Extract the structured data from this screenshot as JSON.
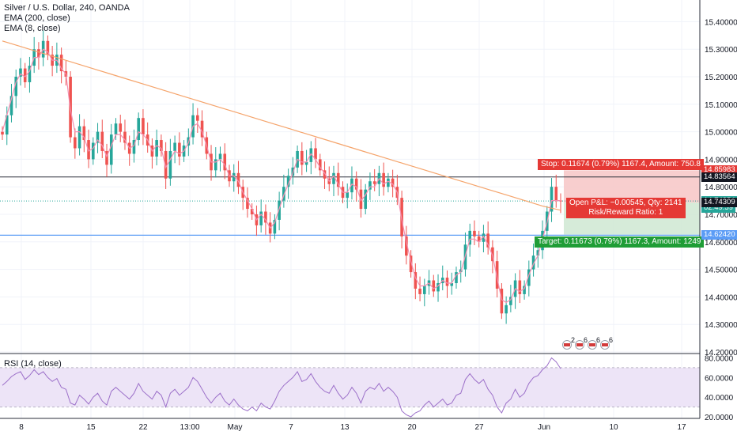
{
  "header": {
    "symbol_line": "Silver / U.S. Dollar, 240, OANDA",
    "ema200_label": "EMA (200, close)",
    "ema8_label": "EMA (8, close)"
  },
  "colors": {
    "up": "#26a69a",
    "down": "#ef5350",
    "ema200": "#f5a46b",
    "ema8": "#f48fb1",
    "stop_zone": "#f7c5c5",
    "target_zone": "#cfe8d2",
    "rsi_line": "#9c70c9",
    "rsi_band": "#ede4f7",
    "stop_tag": "#e53935",
    "target_tag": "#1f9d36",
    "resistance_line": "#2a2e39",
    "support_line": "#5b9cf6"
  },
  "price_axis": {
    "ticks": [
      "15.40000",
      "15.30000",
      "15.20000",
      "15.10000",
      "15.00000",
      "14.90000",
      "14.80000",
      "14.70000",
      "14.60000",
      "14.50000",
      "14.40000",
      "14.30000",
      "14.20000"
    ],
    "tick_values": [
      15.4,
      15.3,
      15.2,
      15.1,
      15.0,
      14.9,
      14.8,
      14.7,
      14.6,
      14.5,
      14.4,
      14.3,
      14.2
    ],
    "range": [
      14.2,
      15.45
    ]
  },
  "price_tags": [
    {
      "label": "14.85983",
      "value": 14.85983,
      "color": "#e53935"
    },
    {
      "label": "14.83564",
      "value": 14.83564,
      "color": "#131722"
    },
    {
      "label": "14.74854",
      "value": 14.74854,
      "color": "#26a69a"
    },
    {
      "label": "02:49:59",
      "value": 14.7225,
      "color": "#26a69a"
    },
    {
      "label": "14.74309",
      "value": 14.743,
      "color": "#131722"
    },
    {
      "label": "14.62636",
      "value": 14.62636,
      "color": "#1f9d36"
    },
    {
      "label": "14.62420",
      "value": 14.6242,
      "color": "#5b9cf6"
    }
  ],
  "rsi": {
    "label": "RSI (14, close)",
    "ticks": [
      "80.0000",
      "60.0000",
      "40.0000",
      "20.0000"
    ],
    "tick_values": [
      80,
      60,
      40,
      20
    ],
    "range": [
      20,
      82
    ],
    "band": [
      30,
      70
    ]
  },
  "time_axis": {
    "labels": [
      "8",
      "15",
      "22",
      "13:00",
      "May",
      "7",
      "13",
      "20",
      "27",
      "Jun",
      "10",
      "17"
    ]
  },
  "position": {
    "stop_text": "Stop: 0.11674 (0.79%) 1167.4, Amount: 750.8",
    "pnl_text": "Open P&L: −0.00545, Qty: 2141",
    "rr_text": "Risk/Reward Ratio: 1",
    "target_text": "Target: 0.11673 (0.79%) 1167.3, Amount: 1249",
    "entry": 14.743,
    "stop": 14.85983,
    "target": 14.62636
  },
  "levels": {
    "resistance": 14.83564,
    "support": 14.6242
  },
  "events": [
    "2",
    "6",
    "6",
    "6"
  ],
  "chart_data": {
    "type": "candlestick",
    "title": "Silver / U.S. Dollar, 240, OANDA",
    "xlabel": "",
    "ylabel": "",
    "ylim": [
      14.2,
      15.45
    ],
    "x_labels": [
      "8",
      "15",
      "22",
      "13:00",
      "May",
      "7",
      "13",
      "20",
      "27",
      "Jun",
      "10",
      "17"
    ],
    "close": [
      14.99,
      15.06,
      15.13,
      15.2,
      15.23,
      15.18,
      15.24,
      15.3,
      15.27,
      15.33,
      15.28,
      15.24,
      15.28,
      15.22,
      15.2,
      14.98,
      14.94,
      15.02,
      14.97,
      14.9,
      14.96,
      15.0,
      14.93,
      14.88,
      14.99,
      15.03,
      15.0,
      14.96,
      14.92,
      14.97,
      15.05,
      14.99,
      14.95,
      14.91,
      14.97,
      14.93,
      14.83,
      14.93,
      14.96,
      14.91,
      14.95,
      14.98,
      15.06,
      15.04,
      14.98,
      14.92,
      14.86,
      14.9,
      14.92,
      14.86,
      14.82,
      14.85,
      14.8,
      14.76,
      14.72,
      14.7,
      14.66,
      14.71,
      14.67,
      14.63,
      14.68,
      14.75,
      14.8,
      14.84,
      14.87,
      14.93,
      14.88,
      14.89,
      14.94,
      14.9,
      14.86,
      14.83,
      14.81,
      14.85,
      14.8,
      14.76,
      14.78,
      14.83,
      14.79,
      14.72,
      14.79,
      14.82,
      14.81,
      14.85,
      14.8,
      14.83,
      14.8,
      14.76,
      14.62,
      14.55,
      14.49,
      14.43,
      14.41,
      14.44,
      14.46,
      14.42,
      14.45,
      14.47,
      14.44,
      14.45,
      14.49,
      14.5,
      14.59,
      14.64,
      14.62,
      14.6,
      14.63,
      14.58,
      14.53,
      14.43,
      14.34,
      14.37,
      14.4,
      14.46,
      14.41,
      14.44,
      14.5,
      14.55,
      14.57,
      14.64,
      14.71,
      14.8,
      14.75,
      14.74854
    ],
    "ema200": [
      15.33,
      15.31,
      15.29,
      15.27,
      15.25,
      15.23,
      15.21,
      15.19,
      15.17,
      15.15,
      15.13,
      15.11,
      15.09,
      15.07,
      15.05,
      15.03,
      15.01,
      14.99,
      14.97,
      14.95,
      14.93,
      14.91,
      14.89,
      14.87,
      14.85,
      14.83,
      14.81,
      14.79,
      14.77,
      14.75,
      14.73,
      14.715
    ],
    "ema8": [
      15.0,
      15.06,
      15.12,
      15.18,
      15.21,
      15.2,
      15.22,
      15.27,
      15.27,
      15.3,
      15.29,
      15.26,
      15.26,
      15.23,
      15.21,
      15.08,
      15.0,
      15.0,
      14.98,
      14.93,
      14.94,
      14.97,
      14.95,
      14.91,
      14.95,
      14.99,
      14.99,
      14.97,
      14.94,
      14.95,
      15.0,
      14.99,
      14.97,
      14.93,
      14.95,
      14.94,
      14.87,
      14.9,
      14.93,
      14.92,
      14.93,
      14.96,
      15.02,
      15.03,
      15.0,
      14.95,
      14.89,
      14.89,
      14.9,
      14.88,
      14.84,
      14.84,
      14.82,
      14.78,
      14.75,
      14.72,
      14.68,
      14.7,
      14.68,
      14.65,
      14.67,
      14.72,
      14.77,
      14.81,
      14.85,
      14.9,
      14.89,
      14.89,
      14.92,
      14.9,
      14.87,
      14.85,
      14.82,
      14.84,
      14.81,
      14.78,
      14.78,
      14.81,
      14.8,
      14.75,
      14.77,
      14.8,
      14.8,
      14.83,
      14.81,
      14.82,
      14.81,
      14.78,
      14.68,
      14.6,
      14.53,
      14.47,
      14.44,
      14.44,
      14.45,
      14.43,
      14.44,
      14.46,
      14.45,
      14.45,
      14.48,
      14.49,
      14.55,
      14.61,
      14.61,
      14.6,
      14.62,
      14.59,
      14.55,
      14.47,
      14.39,
      14.38,
      14.39,
      14.43,
      14.42,
      14.43,
      14.48,
      14.52,
      14.55,
      14.61,
      14.67,
      14.75,
      14.75,
      14.75
    ],
    "rsi": [
      52,
      56,
      61,
      64,
      66,
      58,
      62,
      68,
      63,
      66,
      60,
      56,
      59,
      50,
      48,
      34,
      32,
      42,
      38,
      33,
      40,
      44,
      36,
      32,
      46,
      50,
      46,
      42,
      38,
      44,
      54,
      46,
      42,
      38,
      46,
      42,
      30,
      44,
      48,
      42,
      46,
      50,
      60,
      56,
      48,
      40,
      34,
      40,
      44,
      36,
      32,
      38,
      32,
      28,
      26,
      30,
      26,
      34,
      30,
      28,
      36,
      46,
      52,
      56,
      60,
      66,
      56,
      58,
      64,
      56,
      50,
      46,
      44,
      52,
      44,
      38,
      42,
      50,
      44,
      34,
      46,
      50,
      48,
      54,
      46,
      50,
      46,
      40,
      26,
      22,
      20,
      24,
      26,
      32,
      36,
      30,
      34,
      38,
      32,
      34,
      42,
      44,
      58,
      64,
      58,
      54,
      58,
      48,
      42,
      30,
      24,
      34,
      38,
      48,
      40,
      44,
      54,
      60,
      62,
      68,
      72,
      80,
      76,
      69
    ]
  }
}
